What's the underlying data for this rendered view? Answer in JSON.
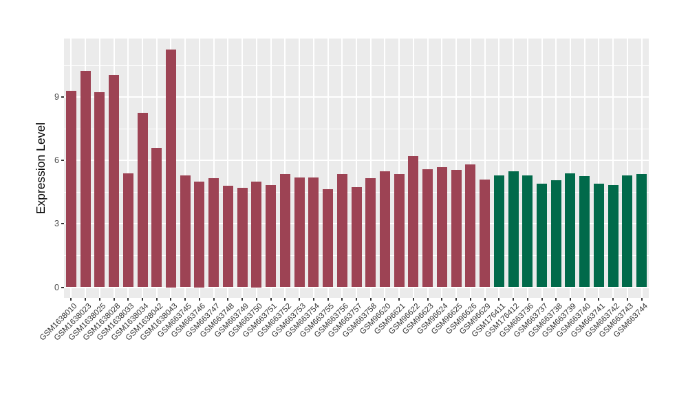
{
  "figure": {
    "title": "",
    "background_color": "#FFFFFF"
  },
  "y_axis": {
    "title": "Expression Level",
    "tick_labels": [
      "0",
      "3",
      "6",
      "9"
    ]
  },
  "x_axis": {
    "title": ""
  },
  "chart_data": {
    "type": "bar",
    "title": "",
    "xlabel": "",
    "ylabel": "Expression Level",
    "ylim": [
      0,
      11.8
    ],
    "yticks": [
      0,
      3,
      6,
      9
    ],
    "yticks_minor": [
      1.5,
      4.5,
      7.5,
      10.5
    ],
    "grid": true,
    "legend": "none",
    "panel_background": "#EBEBEB",
    "gridline_color": "#FFFFFF",
    "axis_text_color": "#4d4d4d",
    "tick_color": "#333333",
    "group_colors": {
      "group1": "#9D4354",
      "group2": "#016A4A"
    },
    "categories": [
      "GSM1638010",
      "GSM1638023",
      "GSM1638025",
      "GSM1638028",
      "GSM1638033",
      "GSM1638034",
      "GSM1638042",
      "GSM1638043",
      "GSM663745",
      "GSM663746",
      "GSM663747",
      "GSM663748",
      "GSM663749",
      "GSM663750",
      "GSM663751",
      "GSM663752",
      "GSM663753",
      "GSM663754",
      "GSM663755",
      "GSM663756",
      "GSM663757",
      "GSM663758",
      "GSM96620",
      "GSM96621",
      "GSM96622",
      "GSM96623",
      "GSM96624",
      "GSM96625",
      "GSM96626",
      "GSM96629",
      "GSM176411",
      "GSM176412",
      "GSM663736",
      "GSM663737",
      "GSM663738",
      "GSM663739",
      "GSM663740",
      "GSM663741",
      "GSM663742",
      "GSM663743",
      "GSM663744"
    ],
    "values": [
      9.3,
      10.25,
      9.25,
      10.05,
      5.4,
      8.25,
      6.6,
      11.25,
      5.3,
      5.0,
      5.15,
      4.8,
      4.7,
      5.0,
      4.85,
      5.35,
      5.2,
      5.2,
      4.65,
      5.35,
      4.75,
      5.15,
      5.5,
      5.35,
      6.2,
      5.6,
      5.7,
      5.55,
      5.8,
      5.1,
      5.3,
      5.5,
      5.3,
      4.9,
      5.05,
      5.4,
      5.25,
      4.9,
      4.85,
      5.3,
      5.35
    ],
    "bar_groups": [
      "group1",
      "group1",
      "group1",
      "group1",
      "group1",
      "group1",
      "group1",
      "group1",
      "group1",
      "group1",
      "group1",
      "group1",
      "group1",
      "group1",
      "group1",
      "group1",
      "group1",
      "group1",
      "group1",
      "group1",
      "group1",
      "group1",
      "group1",
      "group1",
      "group1",
      "group1",
      "group1",
      "group1",
      "group1",
      "group1",
      "group2",
      "group2",
      "group2",
      "group2",
      "group2",
      "group2",
      "group2",
      "group2",
      "group2",
      "group2",
      "group2"
    ]
  }
}
